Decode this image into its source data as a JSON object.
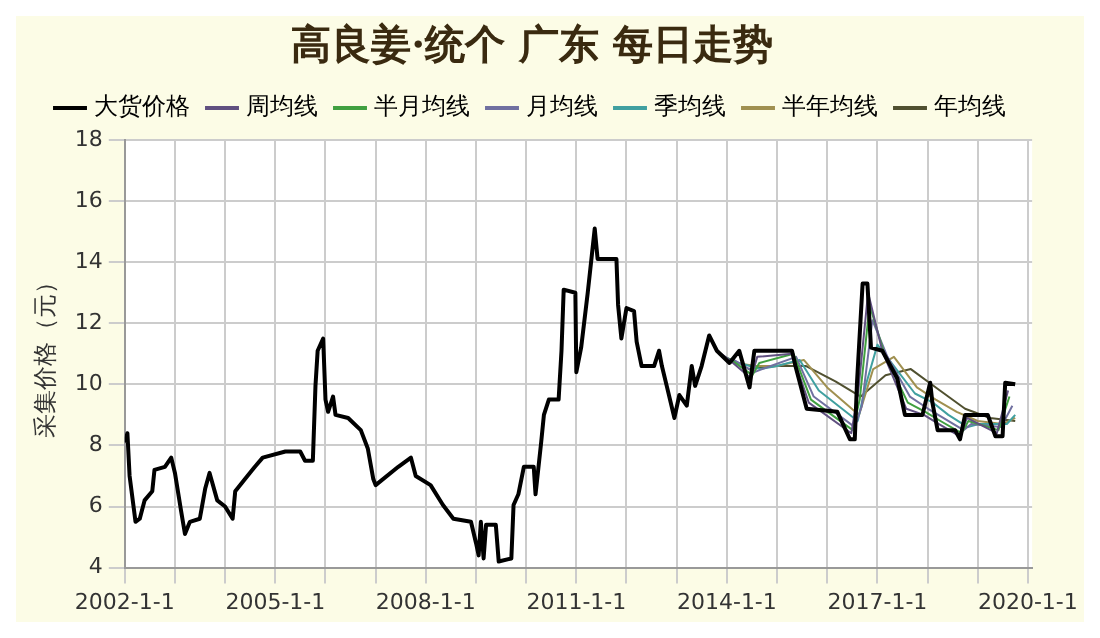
{
  "chart_data": {
    "type": "line",
    "title": "高良姜·统个 广东 每日走势",
    "ylabel": "采集价格（元）",
    "legend": "top",
    "grid": true,
    "marker": "none",
    "line_style": "solid",
    "xlim": [
      "2002-01-01",
      "2020-02-01"
    ],
    "xticks": [
      {
        "value": "2002-01-01",
        "label": "2002-1-1"
      },
      {
        "value": "2003-01-01",
        "label": null
      },
      {
        "value": "2004-01-01",
        "label": null
      },
      {
        "value": "2005-01-01",
        "label": "2005-1-1"
      },
      {
        "value": "2006-01-01",
        "label": null
      },
      {
        "value": "2007-01-01",
        "label": null
      },
      {
        "value": "2008-01-01",
        "label": "2008-1-1"
      },
      {
        "value": "2009-01-01",
        "label": null
      },
      {
        "value": "2010-01-01",
        "label": null
      },
      {
        "value": "2011-01-01",
        "label": "2011-1-1"
      },
      {
        "value": "2012-01-01",
        "label": null
      },
      {
        "value": "2013-01-01",
        "label": null
      },
      {
        "value": "2014-01-01",
        "label": "2014-1-1"
      },
      {
        "value": "2015-01-01",
        "label": null
      },
      {
        "value": "2016-01-01",
        "label": null
      },
      {
        "value": "2017-01-01",
        "label": "2017-1-1"
      },
      {
        "value": "2018-01-01",
        "label": null
      },
      {
        "value": "2019-01-01",
        "label": null
      },
      {
        "value": "2020-01-01",
        "label": "2020-1-1"
      }
    ],
    "ylim": [
      4,
      18
    ],
    "yticks": [
      4,
      6,
      8,
      10,
      12,
      14,
      16,
      18
    ],
    "series": [
      {
        "name": "大货价格",
        "color": "#000000",
        "x": [
          "2002-01-01",
          "2002-01-20",
          "2002-02-05",
          "2002-03-20",
          "2002-04-20",
          "2002-05-25",
          "2002-07-20",
          "2002-08-05",
          "2002-10-20",
          "2002-12-05",
          "2003-01-01",
          "2003-02-15",
          "2003-03-15",
          "2003-04-20",
          "2003-07-01",
          "2003-08-10",
          "2003-09-10",
          "2003-11-05",
          "2004-01-01",
          "2004-02-25",
          "2004-03-15",
          "2004-05-25",
          "2004-08-05",
          "2004-10-01",
          "2005-03-15",
          "2005-07-01",
          "2005-08-05",
          "2005-10-01",
          "2005-10-20",
          "2005-11-05",
          "2005-12-15",
          "2006-01-01",
          "2006-01-20",
          "2006-02-25",
          "2006-03-15",
          "2006-06-15",
          "2006-09-15",
          "2006-11-05",
          "2006-12-15",
          "2007-01-01",
          "2007-06-15",
          "2007-09-15",
          "2007-10-20",
          "2008-02-05",
          "2008-05-05",
          "2008-07-20",
          "2008-11-25",
          "2009-01-01",
          "2009-01-20",
          "2009-02-05",
          "2009-02-25",
          "2009-03-15",
          "2009-05-25",
          "2009-06-15",
          "2009-09-15",
          "2009-10-01",
          "2009-11-05",
          "2009-12-15",
          "2010-02-25",
          "2010-03-10",
          "2010-04-20",
          "2010-05-10",
          "2010-06-15",
          "2010-08-25",
          "2010-09-15",
          "2010-10-01",
          "2010-12-25",
          "2011-01-01",
          "2011-02-05",
          "2011-03-25",
          "2011-05-15",
          "2011-06-05",
          "2011-10-20",
          "2011-11-01",
          "2011-11-25",
          "2012-01-01",
          "2012-02-25",
          "2012-03-15",
          "2012-04-20",
          "2012-07-20",
          "2012-08-25",
          "2012-09-15",
          "2012-10-20",
          "2012-12-15",
          "2013-01-20",
          "2013-03-15",
          "2013-04-20",
          "2013-05-15",
          "2013-07-01",
          "2013-08-25",
          "2013-10-20",
          "2014-01-20",
          "2014-04-01",
          "2014-06-15",
          "2014-07-20",
          "2015-04-20",
          "2015-05-15",
          "2015-08-05",
          "2016-03-15",
          "2016-06-15",
          "2016-07-20",
          "2016-08-05",
          "2016-09-15",
          "2016-10-20",
          "2016-11-15",
          "2017-02-05",
          "2017-05-25",
          "2017-07-20",
          "2017-11-25",
          "2018-01-20",
          "2018-02-05",
          "2018-03-15",
          "2018-07-20",
          "2018-08-25",
          "2018-10-01",
          "2019-03-15",
          "2019-05-10",
          "2019-07-01",
          "2019-07-20",
          "2019-10-01"
        ],
        "values": [
          8.1,
          8.4,
          7.0,
          5.5,
          5.6,
          6.2,
          6.5,
          7.2,
          7.3,
          7.6,
          7.1,
          5.85,
          5.1,
          5.5,
          5.6,
          6.6,
          7.1,
          6.2,
          6.0,
          5.6,
          6.5,
          6.9,
          7.3,
          7.6,
          7.8,
          7.8,
          7.5,
          7.5,
          9.95,
          11.1,
          11.5,
          9.5,
          9.1,
          9.6,
          9.0,
          8.9,
          8.5,
          7.9,
          6.9,
          6.7,
          7.3,
          7.6,
          7.0,
          6.7,
          6.05,
          5.6,
          5.5,
          4.8,
          4.4,
          5.5,
          4.3,
          5.4,
          5.4,
          4.2,
          4.3,
          6.05,
          6.4,
          7.3,
          7.3,
          6.4,
          8.1,
          9.0,
          9.5,
          9.5,
          11.1,
          13.1,
          13.0,
          10.4,
          11.2,
          13.0,
          15.1,
          14.1,
          14.1,
          12.6,
          11.5,
          12.5,
          12.4,
          11.4,
          10.6,
          10.6,
          11.1,
          10.6,
          9.95,
          8.9,
          9.65,
          9.3,
          10.6,
          9.95,
          10.6,
          11.6,
          11.1,
          10.7,
          11.1,
          9.9,
          11.1,
          11.1,
          10.6,
          9.2,
          9.1,
          8.2,
          8.2,
          10.05,
          13.3,
          13.3,
          11.2,
          11.1,
          10.2,
          9.0,
          9.0,
          10.05,
          9.4,
          8.5,
          8.5,
          8.2,
          9.0,
          9.0,
          8.3,
          8.3,
          10.05,
          10.0
        ]
      },
      {
        "name": "周均线",
        "color": "#605080",
        "x": [
          "2013-10-20",
          "2014-01-20",
          "2014-06-25",
          "2014-08-10",
          "2015-04-20",
          "2015-08-20",
          "2016-06-25",
          "2016-08-15",
          "2016-10-25",
          "2017-02-05",
          "2017-07-30",
          "2017-12-05",
          "2018-03-25",
          "2018-08-25",
          "2018-10-15",
          "2019-05-20",
          "2019-08-10"
        ],
        "values": [
          11.1,
          10.8,
          10.2,
          10.9,
          11.0,
          9.4,
          8.4,
          9.8,
          13.0,
          11.1,
          9.2,
          9.0,
          8.7,
          8.3,
          8.9,
          8.4,
          9.8
        ]
      },
      {
        "name": "半月均线",
        "color": "#40a040",
        "x": [
          "2013-11-01",
          "2014-02-01",
          "2014-07-05",
          "2014-08-25",
          "2015-05-01",
          "2015-09-05",
          "2016-07-05",
          "2016-08-25",
          "2016-11-05",
          "2017-02-20",
          "2017-08-10",
          "2017-12-15",
          "2018-04-05",
          "2018-09-05",
          "2018-10-25",
          "2019-06-01",
          "2019-08-20"
        ],
        "values": [
          11.0,
          10.8,
          10.3,
          10.7,
          11.0,
          9.5,
          8.5,
          9.5,
          12.6,
          11.0,
          9.4,
          9.1,
          8.8,
          8.4,
          8.8,
          8.5,
          9.6
        ]
      },
      {
        "name": "月均线",
        "color": "#7070a0",
        "x": [
          "2013-11-20",
          "2014-02-20",
          "2014-07-20",
          "2014-09-15",
          "2015-05-20",
          "2015-09-25",
          "2016-07-20",
          "2016-09-10",
          "2016-11-25",
          "2017-03-15",
          "2017-08-25",
          "2018-01-05",
          "2018-04-25",
          "2018-09-20",
          "2018-11-15",
          "2019-06-20",
          "2019-09-10"
        ],
        "values": [
          10.9,
          10.8,
          10.4,
          10.5,
          10.9,
          9.6,
          8.6,
          9.3,
          12.1,
          10.9,
          9.6,
          9.2,
          8.9,
          8.5,
          8.7,
          8.6,
          9.3
        ]
      },
      {
        "name": "季均线",
        "color": "#40a0a0",
        "x": [
          "2014-01-01",
          "2014-04-01",
          "2014-09-01",
          "2015-01-01",
          "2015-06-15",
          "2015-11-01",
          "2016-08-10",
          "2016-10-10",
          "2017-01-01",
          "2017-05-01",
          "2017-10-01",
          "2018-02-10",
          "2018-06-01",
          "2018-10-20",
          "2019-01-10",
          "2019-08-01",
          "2019-10-01"
        ],
        "values": [
          10.8,
          10.7,
          10.5,
          10.6,
          10.8,
          9.8,
          8.8,
          10.0,
          11.3,
          10.6,
          9.7,
          9.4,
          9.0,
          8.6,
          8.7,
          8.7,
          9.0
        ]
      },
      {
        "name": "半年均线",
        "color": "#a09050",
        "x": [
          "2014-03-01",
          "2014-08-01",
          "2015-01-01",
          "2015-07-15",
          "2016-01-01",
          "2016-08-20",
          "2016-12-01",
          "2017-05-01",
          "2017-10-15",
          "2018-03-01",
          "2018-08-01",
          "2019-01-01",
          "2019-07-01",
          "2019-10-01"
        ],
        "values": [
          10.7,
          10.6,
          10.6,
          10.8,
          9.9,
          9.0,
          10.5,
          10.9,
          9.9,
          9.5,
          9.1,
          8.8,
          8.7,
          8.9
        ]
      },
      {
        "name": "年均线",
        "color": "#505030",
        "x": [
          "2014-06-01",
          "2015-01-01",
          "2015-08-01",
          "2016-03-01",
          "2016-09-01",
          "2017-03-01",
          "2017-09-01",
          "2018-04-01",
          "2018-10-01",
          "2019-04-01",
          "2019-10-01"
        ],
        "values": [
          10.5,
          10.6,
          10.6,
          10.1,
          9.6,
          10.3,
          10.5,
          9.8,
          9.2,
          8.9,
          8.8
        ]
      }
    ]
  }
}
